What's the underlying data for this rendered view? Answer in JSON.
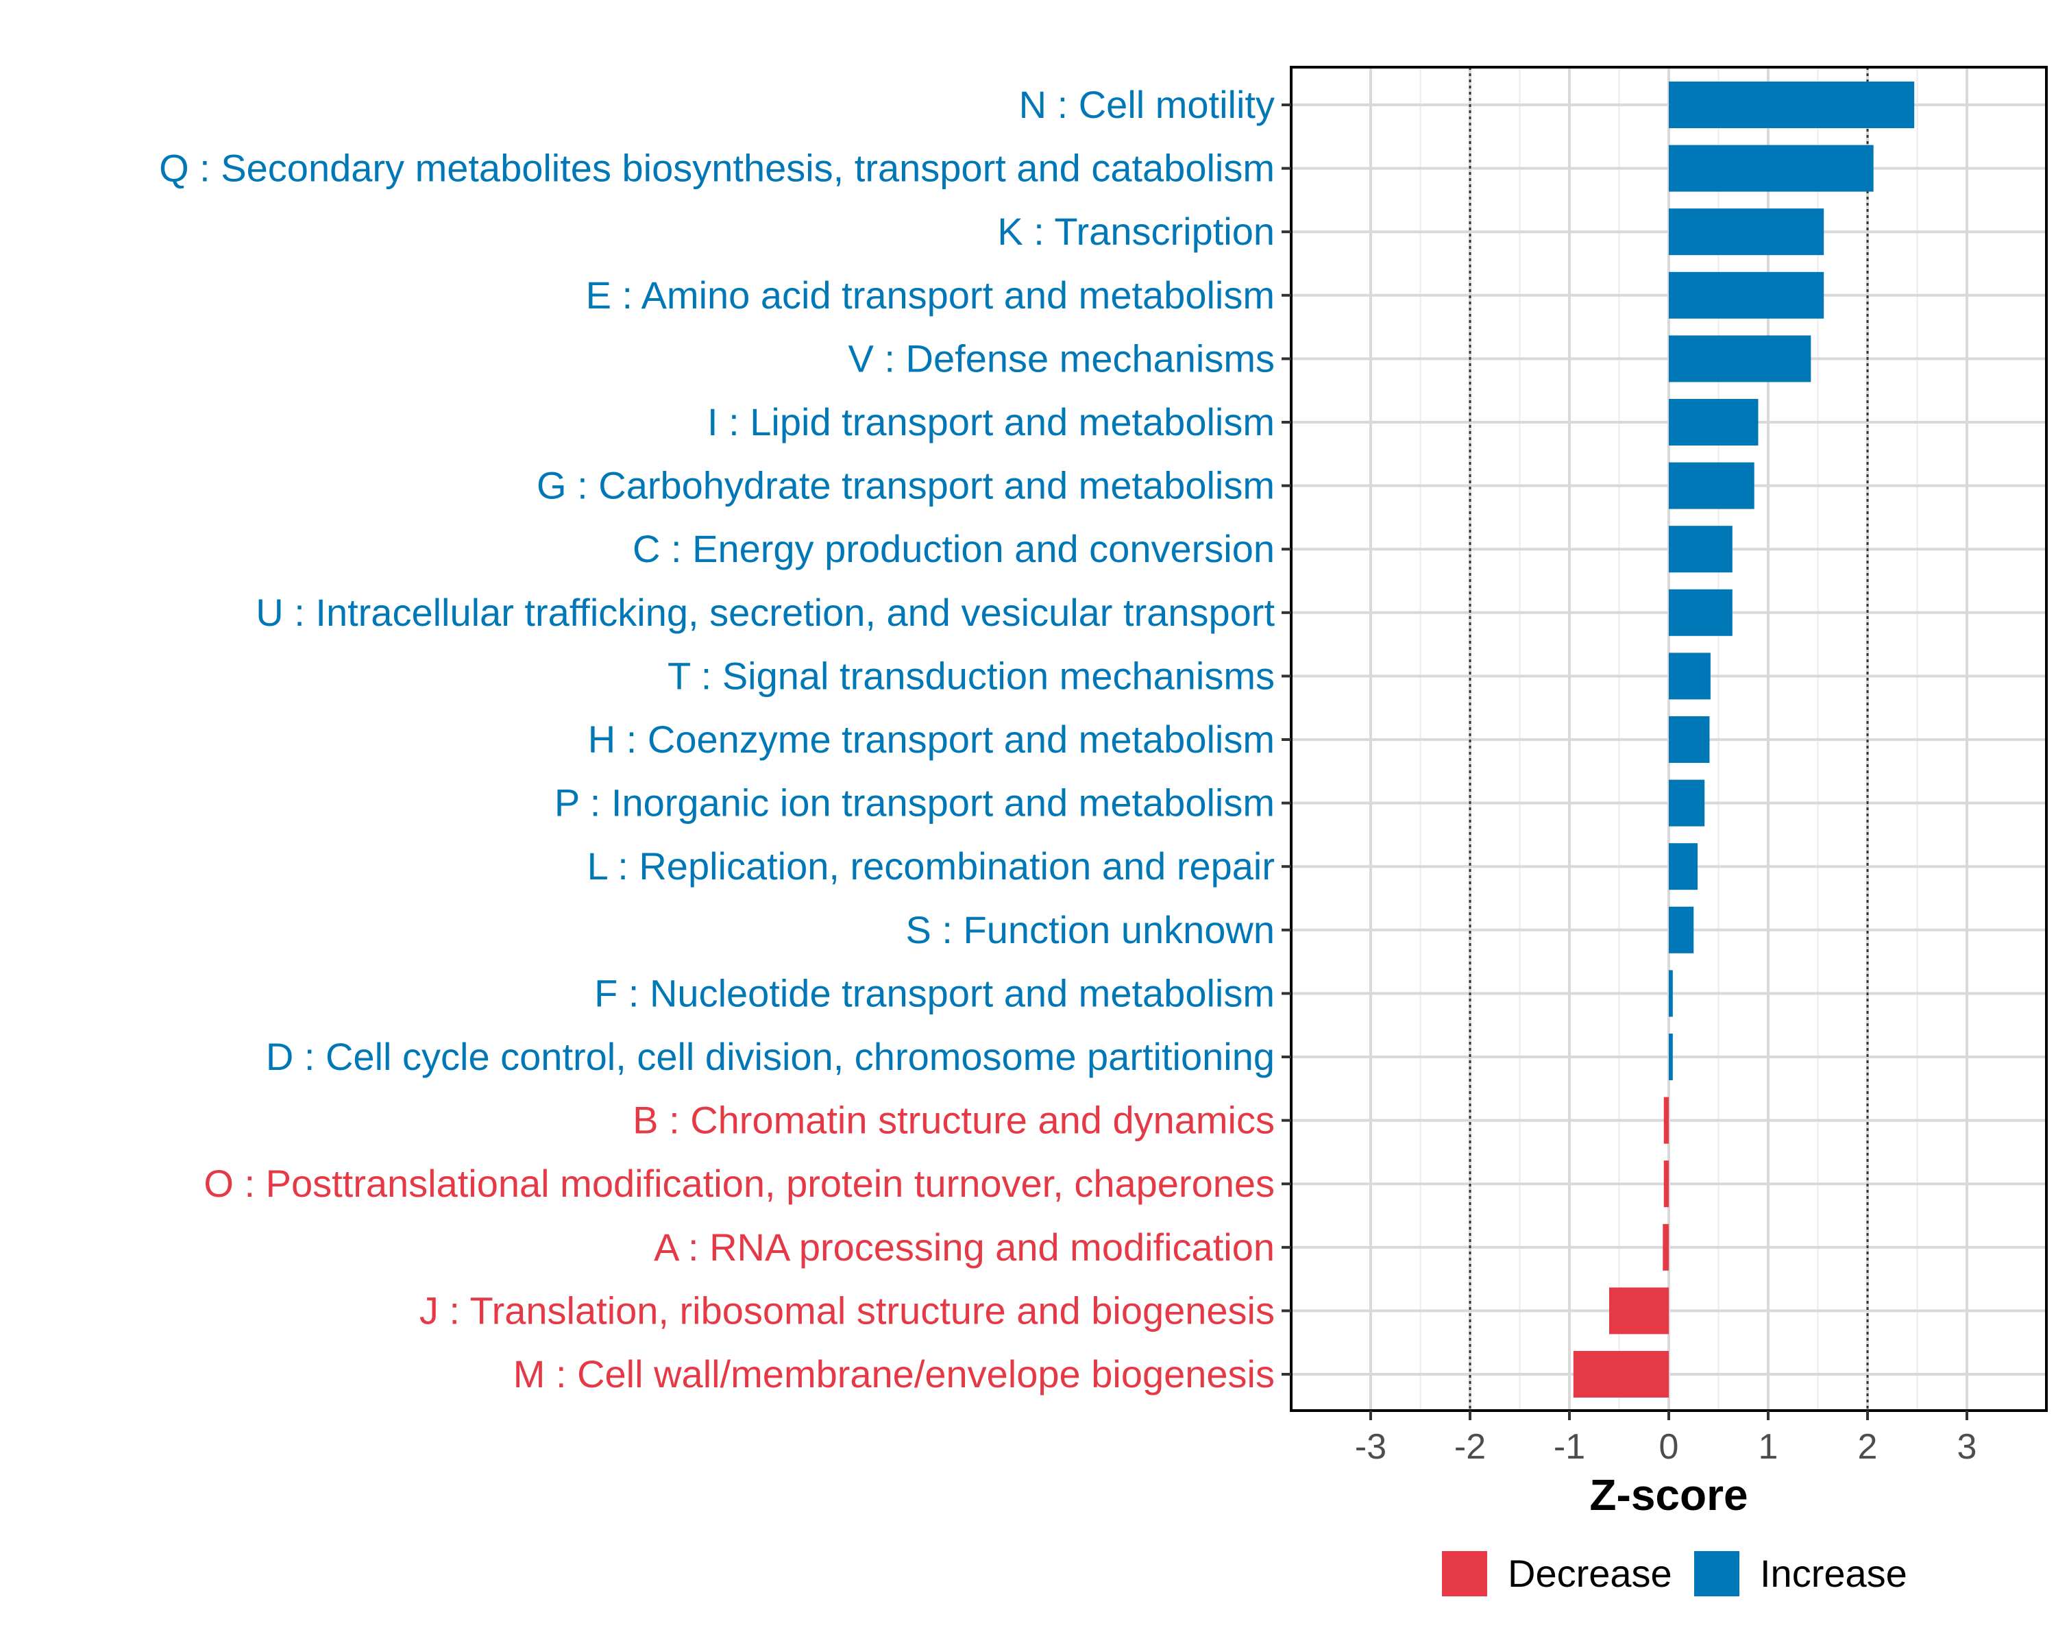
{
  "chart_data": {
    "type": "bar",
    "orientation": "horizontal",
    "xlabel": "Z-score",
    "xlim": [
      -3.8,
      3.8
    ],
    "xticks": [
      -3,
      -2,
      -1,
      0,
      1,
      2,
      3
    ],
    "reference_lines": [
      -2,
      2
    ],
    "grid": true,
    "legend_position": "bottom",
    "colors": {
      "Decrease": "#e63946",
      "Increase": "#0077b6"
    },
    "legend": [
      {
        "label": "Decrease",
        "color": "#e63946"
      },
      {
        "label": "Increase",
        "color": "#0077b6"
      }
    ],
    "categories": [
      {
        "label": "N : Cell motility",
        "value": 2.47,
        "group": "Increase"
      },
      {
        "label": "Q : Secondary metabolites biosynthesis, transport and catabolism",
        "value": 2.06,
        "group": "Increase"
      },
      {
        "label": "K : Transcription",
        "value": 1.56,
        "group": "Increase"
      },
      {
        "label": "E : Amino acid transport and metabolism",
        "value": 1.56,
        "group": "Increase"
      },
      {
        "label": "V : Defense mechanisms",
        "value": 1.43,
        "group": "Increase"
      },
      {
        "label": "I : Lipid transport and metabolism",
        "value": 0.9,
        "group": "Increase"
      },
      {
        "label": "G : Carbohydrate transport and metabolism",
        "value": 0.86,
        "group": "Increase"
      },
      {
        "label": "C : Energy production and conversion",
        "value": 0.64,
        "group": "Increase"
      },
      {
        "label": "U : Intracellular trafficking, secretion, and vesicular transport",
        "value": 0.64,
        "group": "Increase"
      },
      {
        "label": "T : Signal transduction mechanisms",
        "value": 0.42,
        "group": "Increase"
      },
      {
        "label": "H : Coenzyme transport and metabolism",
        "value": 0.41,
        "group": "Increase"
      },
      {
        "label": "P : Inorganic ion transport and metabolism",
        "value": 0.36,
        "group": "Increase"
      },
      {
        "label": "L : Replication, recombination and repair",
        "value": 0.29,
        "group": "Increase"
      },
      {
        "label": "S : Function unknown",
        "value": 0.25,
        "group": "Increase"
      },
      {
        "label": "F : Nucleotide transport and metabolism",
        "value": 0.04,
        "group": "Increase"
      },
      {
        "label": "D : Cell cycle control, cell division, chromosome partitioning",
        "value": 0.04,
        "group": "Increase"
      },
      {
        "label": "B : Chromatin structure and dynamics",
        "value": -0.05,
        "group": "Decrease"
      },
      {
        "label": "O : Posttranslational modification, protein turnover, chaperones",
        "value": -0.05,
        "group": "Decrease"
      },
      {
        "label": "A : RNA processing and modification",
        "value": -0.06,
        "group": "Decrease"
      },
      {
        "label": "J : Translation, ribosomal structure and biogenesis",
        "value": -0.6,
        "group": "Decrease"
      },
      {
        "label": "M : Cell wall/membrane/envelope biogenesis",
        "value": -0.96,
        "group": "Decrease"
      }
    ]
  }
}
